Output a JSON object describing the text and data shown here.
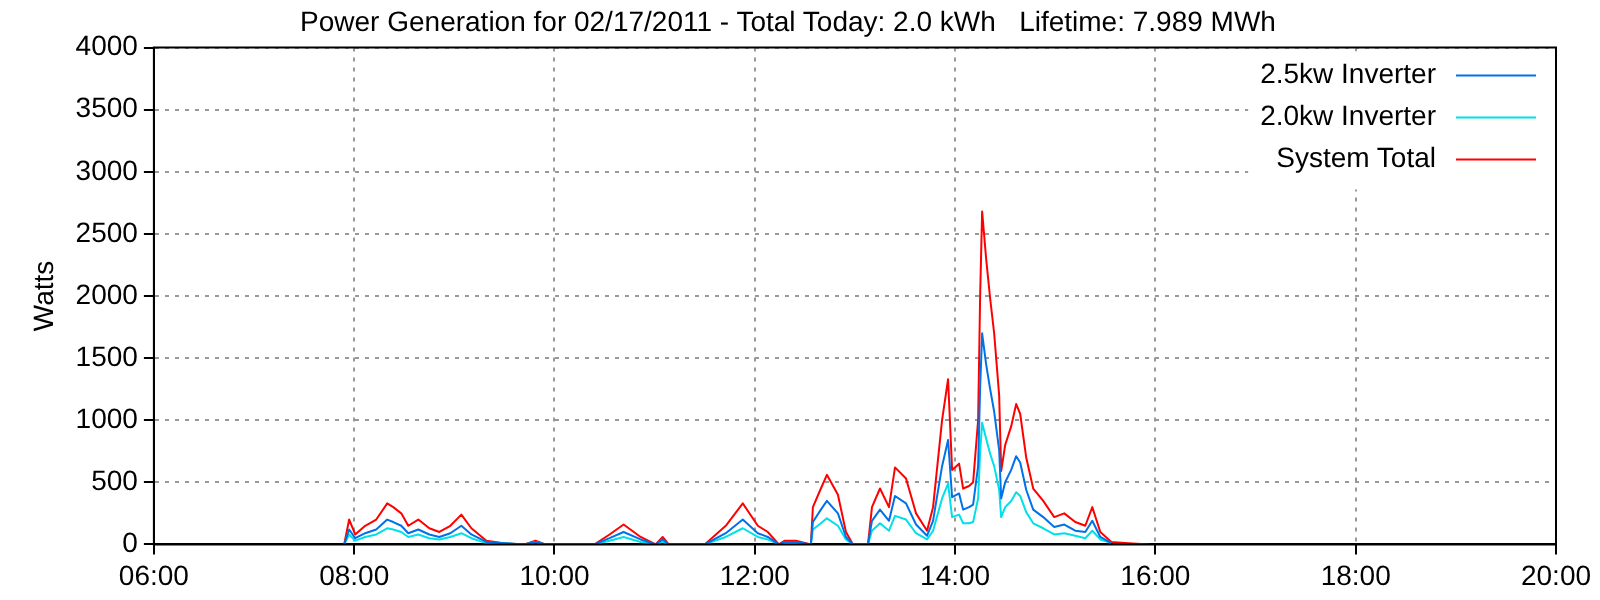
{
  "chart_data": {
    "type": "line",
    "title": "Power Generation for 02/17/2011 - Total Today: 2.0 kWh   Lifetime: 7.989 MWh",
    "ylabel": "Watts",
    "x": [
      7.9,
      7.95,
      8.01,
      8.11,
      8.22,
      8.33,
      8.39,
      8.47,
      8.54,
      8.64,
      8.75,
      8.85,
      8.96,
      9.07,
      9.17,
      9.32,
      9.49,
      9.7,
      9.81,
      9.91,
      10.4,
      10.55,
      10.69,
      10.86,
      11.01,
      11.08,
      11.14,
      11.5,
      11.71,
      11.88,
      12.03,
      12.13,
      12.24,
      12.3,
      12.41,
      12.56,
      12.58,
      12.66,
      12.72,
      12.83,
      12.91,
      12.98,
      13.13,
      13.17,
      13.25,
      13.34,
      13.4,
      13.51,
      13.61,
      13.72,
      13.78,
      13.87,
      13.93,
      13.97,
      14.04,
      14.08,
      14.14,
      14.18,
      14.23,
      14.25,
      14.27,
      14.31,
      14.35,
      14.39,
      14.44,
      14.46,
      14.5,
      14.56,
      14.61,
      14.65,
      14.71,
      14.78,
      14.88,
      14.99,
      15.09,
      15.2,
      15.3,
      15.37,
      15.45,
      15.56,
      15.73,
      15.94
    ],
    "series": [
      {
        "name": "2.5kw Inverter",
        "color": "#0072e8",
        "values": [
          0,
          120,
          50,
          90,
          120,
          200,
          180,
          150,
          90,
          120,
          80,
          60,
          90,
          150,
          80,
          20,
          10,
          0,
          20,
          0,
          0,
          50,
          100,
          40,
          0,
          40,
          0,
          0,
          90,
          200,
          90,
          60,
          0,
          20,
          20,
          0,
          180,
          280,
          350,
          250,
          60,
          0,
          0,
          190,
          280,
          190,
          390,
          330,
          160,
          70,
          190,
          630,
          840,
          380,
          410,
          280,
          300,
          320,
          630,
          1260,
          1700,
          1450,
          1250,
          1070,
          760,
          370,
          500,
          600,
          710,
          660,
          440,
          280,
          220,
          140,
          160,
          110,
          100,
          190,
          60,
          10,
          null,
          null
        ]
      },
      {
        "name": "2.0kw Inverter",
        "color": "#00e0e8",
        "values": [
          0,
          80,
          30,
          60,
          80,
          130,
          120,
          100,
          60,
          80,
          50,
          40,
          60,
          90,
          50,
          10,
          10,
          0,
          20,
          0,
          0,
          30,
          60,
          20,
          0,
          20,
          0,
          0,
          60,
          130,
          60,
          40,
          0,
          10,
          10,
          0,
          120,
          170,
          210,
          150,
          40,
          0,
          0,
          110,
          170,
          110,
          230,
          200,
          90,
          40,
          110,
          370,
          490,
          220,
          240,
          170,
          170,
          180,
          370,
          740,
          980,
          850,
          730,
          630,
          440,
          220,
          300,
          350,
          420,
          390,
          260,
          170,
          130,
          80,
          90,
          70,
          50,
          110,
          40,
          10,
          null,
          null
        ]
      },
      {
        "name": "System Total",
        "color": "#ff0000",
        "values": [
          0,
          200,
          80,
          150,
          200,
          330,
          300,
          250,
          150,
          200,
          130,
          100,
          150,
          240,
          130,
          30,
          10,
          0,
          30,
          0,
          0,
          80,
          160,
          60,
          0,
          60,
          0,
          0,
          150,
          330,
          150,
          100,
          0,
          30,
          30,
          0,
          300,
          450,
          560,
          400,
          100,
          0,
          0,
          300,
          450,
          300,
          620,
          530,
          250,
          110,
          300,
          1000,
          1330,
          600,
          650,
          450,
          470,
          500,
          1000,
          2000,
          2680,
          2300,
          1980,
          1700,
          1200,
          590,
          800,
          950,
          1130,
          1050,
          700,
          450,
          350,
          220,
          250,
          180,
          150,
          300,
          100,
          20,
          10,
          0
        ]
      }
    ],
    "xlim": [
      6,
      20
    ],
    "xticks": [
      {
        "value": 6,
        "label": "06:00"
      },
      {
        "value": 8,
        "label": "08:00"
      },
      {
        "value": 10,
        "label": "10:00"
      },
      {
        "value": 12,
        "label": "12:00"
      },
      {
        "value": 14,
        "label": "14:00"
      },
      {
        "value": 16,
        "label": "16:00"
      },
      {
        "value": 18,
        "label": "18:00"
      },
      {
        "value": 20,
        "label": "20:00"
      }
    ],
    "ylim": [
      0,
      4000
    ],
    "yticks": [
      0,
      500,
      1000,
      1500,
      2000,
      2500,
      3000,
      3500,
      4000
    ],
    "grid": true,
    "legend": "top right",
    "marker": "none",
    "line_style": "solid"
  }
}
